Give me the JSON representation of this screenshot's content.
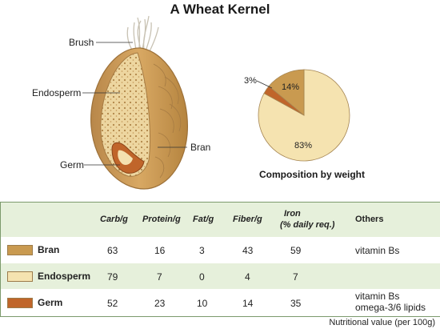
{
  "title": "A Wheat Kernel",
  "kernel_labels": {
    "brush": "Brush",
    "endosperm": "Endosperm",
    "bran": "Bran",
    "germ": "Germ"
  },
  "pie": {
    "caption": "Composition by weight",
    "slices": [
      {
        "part": "Endosperm",
        "label": "83%",
        "value": 83,
        "color": "#f5e3b0"
      },
      {
        "part": "Germ",
        "label": "3%",
        "value": 3,
        "color": "#c0652a"
      },
      {
        "part": "Bran",
        "label": "14%",
        "value": 14,
        "color": "#c99a50"
      }
    ]
  },
  "table": {
    "headers": [
      "Carb/g",
      "Protein/g",
      "Fat/g",
      "Fiber/g",
      "Iron",
      "(% daily req.)",
      "Others"
    ],
    "rows": [
      {
        "name": "Bran",
        "color": "#c99a50",
        "carb": "63",
        "protein": "16",
        "fat": "3",
        "fiber": "43",
        "iron": "59",
        "others": [
          "vitamin Bs"
        ]
      },
      {
        "name": "Endosperm",
        "color": "#f5e3b0",
        "carb": "79",
        "protein": "7",
        "fat": "0",
        "fiber": "4",
        "iron": "7",
        "others": [
          ""
        ]
      },
      {
        "name": "Germ",
        "color": "#c0652a",
        "carb": "52",
        "protein": "23",
        "fat": "10",
        "fiber": "14",
        "iron": "35",
        "others": [
          "vitamin Bs",
          "omega-3/6 lipids"
        ]
      }
    ]
  },
  "footer": "Nutritional value (per 100g)"
}
